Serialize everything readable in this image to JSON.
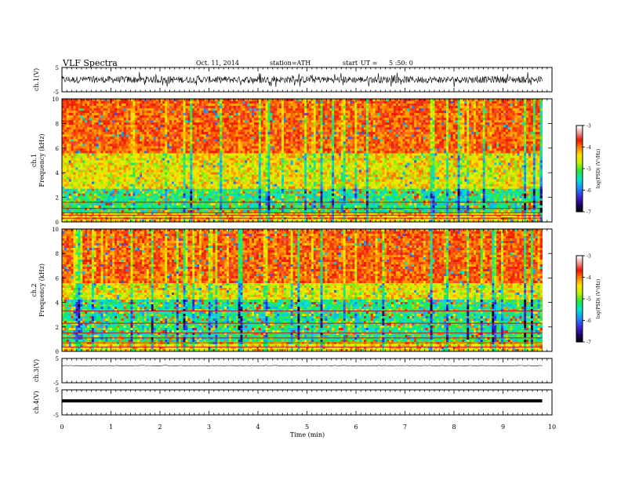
{
  "header": {
    "title": "VLF Spectra",
    "date": "Oct. 11, 2014",
    "station": "station=ATH",
    "start_label": "start",
    "ut_label": "UT =",
    "start_time": "5 :50: 0"
  },
  "chart_data": [
    {
      "type": "line",
      "name": "ch1-waveform",
      "ylabel": "ch.1(V)",
      "ylim": [
        -5,
        5
      ],
      "yticks": [
        "5",
        "-5"
      ],
      "xlim": [
        0,
        10
      ],
      "description_level": 0.0,
      "amplitude": 1.6,
      "color": "#000000"
    },
    {
      "type": "heatmap",
      "name": "ch1-spectrogram",
      "ylabel_channel": "ch.1",
      "ylabel": "Frequency (kHz)",
      "ylim": [
        0,
        10
      ],
      "yticks": [
        "0",
        "2",
        "4",
        "6",
        "8",
        "10"
      ],
      "xlim": [
        0,
        10
      ],
      "data_end_x": 9.8,
      "colorbar_label": "log(PSD) (V²/Hz)",
      "colorbar_ticks": [
        "-3",
        "-4",
        "-5",
        "-6",
        "-7"
      ],
      "colorbar_range": [
        -7,
        -3
      ]
    },
    {
      "type": "heatmap",
      "name": "ch2-spectrogram",
      "ylabel_channel": "ch.2",
      "ylabel": "Frequency (kHz)",
      "ylim": [
        0,
        10
      ],
      "yticks": [
        "0",
        "2",
        "4",
        "6",
        "8",
        "10"
      ],
      "xlim": [
        0,
        10
      ],
      "data_end_x": 9.8,
      "colorbar_label": "log(PSD) (V²/Hz)",
      "colorbar_ticks": [
        "-3",
        "-4",
        "-5",
        "-6",
        "-7"
      ],
      "colorbar_range": [
        -7,
        -3
      ]
    },
    {
      "type": "line",
      "name": "ch3-waveform",
      "ylabel": "ch.3(V)",
      "ylim": [
        -5,
        5
      ],
      "yticks": [
        "5",
        "-5"
      ],
      "xlim": [
        0,
        10
      ],
      "level": 2.0,
      "amplitude": 0.15,
      "color": "#000000"
    },
    {
      "type": "line",
      "name": "ch4-waveform",
      "ylabel": "ch.4(V)",
      "ylim": [
        -5,
        5
      ],
      "yticks": [
        "5",
        "-5"
      ],
      "xlim": [
        0,
        10
      ],
      "level": 0.6,
      "amplitude": 0.0,
      "color": "#000000"
    }
  ],
  "x_axis": {
    "label": "Time (min)",
    "ticks": [
      "0",
      "1",
      "2",
      "3",
      "4",
      "5",
      "6",
      "7",
      "8",
      "9",
      "10"
    ],
    "range": [
      0,
      10
    ]
  }
}
